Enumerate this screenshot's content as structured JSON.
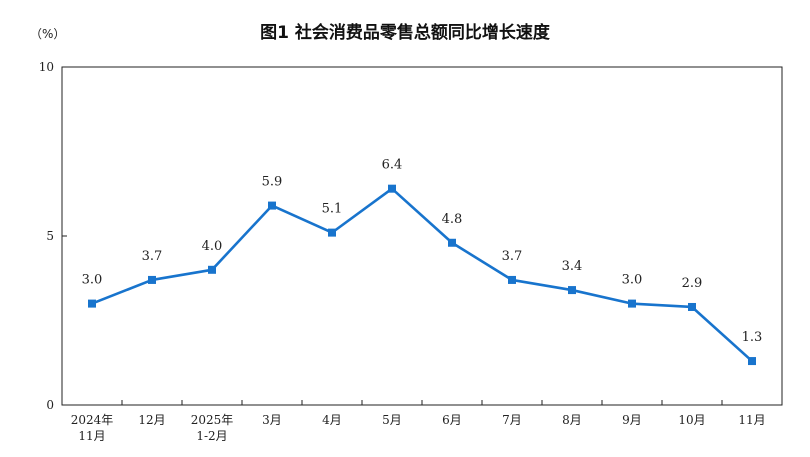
{
  "chart_data": {
    "type": "line",
    "title": "图1  社会消费品零售总额同比增长速度",
    "unit": "（%）",
    "categories": [
      [
        "2024年",
        "11月"
      ],
      [
        "12月"
      ],
      [
        "2025年",
        "1-2月"
      ],
      [
        "3月"
      ],
      [
        "4月"
      ],
      [
        "5月"
      ],
      [
        "6月"
      ],
      [
        "7月"
      ],
      [
        "8月"
      ],
      [
        "9月"
      ],
      [
        "10月"
      ],
      [
        "11月"
      ]
    ],
    "series": [
      {
        "name": "社会消费品零售总额同比增长速度",
        "values": [
          3.0,
          3.7,
          4.0,
          5.9,
          5.1,
          6.4,
          4.8,
          3.7,
          3.4,
          3.0,
          2.9,
          1.3
        ],
        "labels": [
          "3.0",
          "3.7",
          "4.0",
          "5.9",
          "5.1",
          "6.4",
          "4.8",
          "3.7",
          "3.4",
          "3.0",
          "2.9",
          "1.3"
        ]
      }
    ],
    "ylim": [
      0,
      10
    ],
    "yticks": [
      0,
      5,
      10
    ],
    "ytick_labels": [
      "0",
      "5",
      "10"
    ],
    "xlabel": "",
    "ylabel": "",
    "grid": false,
    "line_color": "#1874CD"
  }
}
